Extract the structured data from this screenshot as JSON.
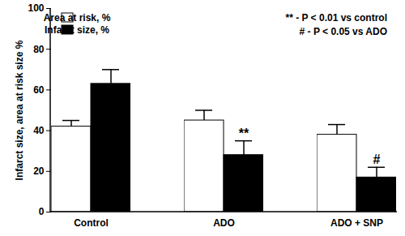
{
  "chart_data": {
    "type": "bar",
    "y_label": "Infarct size, area at risk size %",
    "categories": [
      "Control",
      "ADO",
      "ADO + SNP"
    ],
    "series": [
      {
        "name": "Area at risk, %",
        "color": "#ffffff",
        "values": [
          42,
          45,
          38
        ],
        "errors": [
          3,
          5,
          5
        ]
      },
      {
        "name": "Infarct size, %",
        "color": "#000000",
        "values": [
          63,
          28,
          17
        ],
        "errors": [
          7,
          7,
          5
        ],
        "significance": [
          null,
          "**",
          "#"
        ]
      }
    ],
    "annotations": [
      "** - P < 0.01 vs control",
      "# - P < 0.05 vs ADO"
    ],
    "ylim": [
      0,
      100
    ],
    "yticks": [
      0,
      20,
      40,
      60,
      80,
      100
    ],
    "grid": false,
    "legend": "top-left"
  }
}
